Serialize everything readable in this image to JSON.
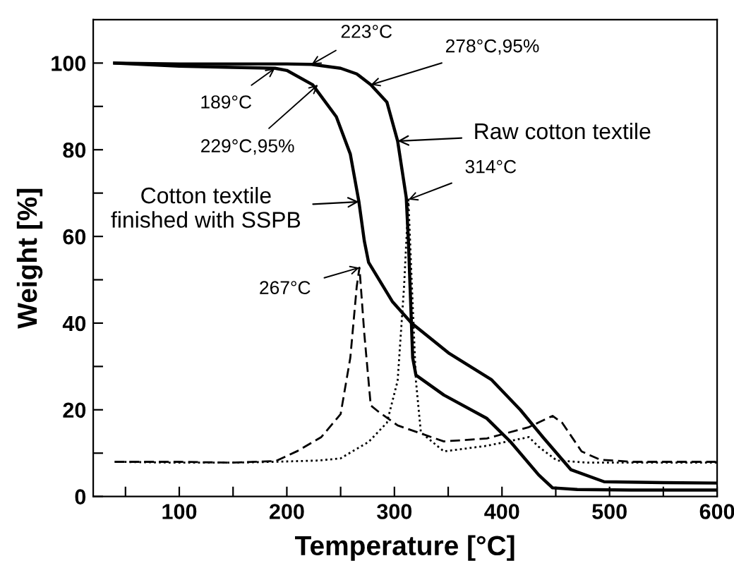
{
  "chart_data": {
    "type": "line",
    "xlabel": "Temperature [°C]",
    "ylabel": "Weight [%]",
    "xlim": [
      20,
      600
    ],
    "ylim": [
      0,
      110
    ],
    "xticks": [
      {
        "value": 50,
        "label": null
      },
      100,
      {
        "value": 150,
        "label": null
      },
      200,
      {
        "value": 250,
        "label": null
      },
      300,
      {
        "value": 350,
        "label": null
      },
      400,
      {
        "value": 450,
        "label": null
      },
      500,
      {
        "value": 550,
        "label": null
      },
      600
    ],
    "yticks": [
      0,
      {
        "value": 10,
        "label": null
      },
      20,
      {
        "value": 30,
        "label": null
      },
      40,
      {
        "value": 50,
        "label": null
      },
      60,
      {
        "value": 70,
        "label": null
      },
      80,
      {
        "value": 90,
        "label": null
      },
      100
    ],
    "grid": false,
    "marker": "none",
    "series": [
      {
        "name": "Raw cotton textile",
        "color": "#000000",
        "line_style": "solid",
        "x": [
          40,
          100,
          150,
          200,
          223,
          250,
          265,
          278,
          293,
          303,
          311,
          313,
          317,
          320,
          346,
          386,
          408,
          434,
          447,
          470,
          520,
          600
        ],
        "values": [
          100,
          99.8,
          99.8,
          99.8,
          99.7,
          98.8,
          97.5,
          95,
          91,
          82,
          69,
          59,
          32,
          28,
          23.4,
          18,
          12.6,
          5,
          2,
          1.6,
          1.5,
          1.5
        ]
      },
      {
        "name": "Cotton textile\nfinished with SSPB",
        "color": "#000000",
        "line_style": "solid",
        "x": [
          40,
          100,
          150,
          189,
          200,
          224,
          246,
          259,
          267,
          272,
          276,
          298,
          316,
          351,
          390,
          417,
          438,
          464,
          495,
          550,
          600
        ],
        "values": [
          100,
          99.3,
          99,
          98.8,
          98.3,
          95,
          87.6,
          79,
          68,
          59,
          54,
          45,
          40,
          33,
          27,
          20,
          13.7,
          6.2,
          3.4,
          3.2,
          3.1
        ]
      },
      {
        "color": "#000000",
        "line_style": "dashed",
        "x": [
          40,
          100,
          150,
          190,
          210,
          232,
          250,
          259,
          265,
          267.5,
          272,
          278,
          285,
          303,
          346,
          386,
          425,
          447,
          456,
          474,
          491,
          520,
          600
        ],
        "values": [
          8,
          8,
          7.8,
          8.2,
          10.5,
          13.7,
          19,
          32,
          48.5,
          52.8,
          37.6,
          21,
          19.6,
          16.4,
          12.7,
          13.4,
          16,
          18.6,
          17,
          10.4,
          8.5,
          8,
          8
        ]
      },
      {
        "color": "#000000",
        "line_style": "dotted",
        "x": [
          40,
          100,
          150,
          188,
          230,
          250,
          276,
          293,
          303,
          309,
          313,
          316,
          320,
          324.6,
          346,
          386,
          425,
          434,
          451,
          480,
          600
        ],
        "values": [
          8,
          7.8,
          7.8,
          8,
          8.3,
          8.8,
          12.6,
          17,
          26.7,
          48.5,
          68.5,
          50,
          26.7,
          14.8,
          10.4,
          11.7,
          13.7,
          11.5,
          8.3,
          7.8,
          7.8
        ]
      }
    ],
    "annotations": [
      {
        "text": "223°C",
        "x": 223,
        "y": 99.7
      },
      {
        "text": "189°C",
        "x": 189,
        "y": 98.8
      },
      {
        "text": "229°C,95%",
        "x": 229,
        "y": 95
      },
      {
        "text": "278°C,95%",
        "x": 278,
        "y": 95
      },
      {
        "text": "314°C",
        "x": 313,
        "y": 68.5
      },
      {
        "text": "267°C",
        "x": 267.5,
        "y": 52.8
      }
    ]
  }
}
